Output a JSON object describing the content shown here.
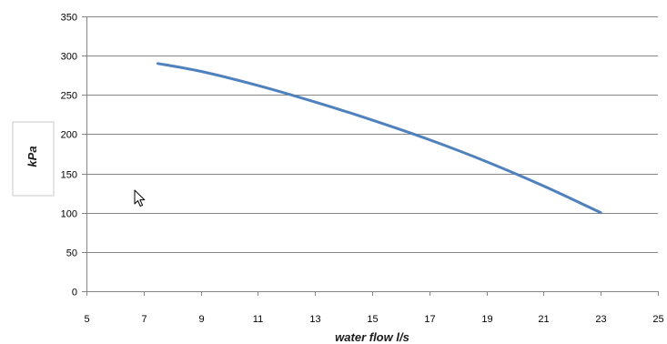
{
  "chart_data": {
    "type": "line",
    "title": "",
    "xlabel": "water flow l/s",
    "ylabel": "kPa",
    "xlim": [
      5,
      25
    ],
    "ylim": [
      0,
      350
    ],
    "x_ticks": [
      5,
      7,
      9,
      11,
      13,
      15,
      17,
      19,
      21,
      23,
      25
    ],
    "y_ticks": [
      0,
      50,
      100,
      150,
      200,
      250,
      300,
      350
    ],
    "grid": "horizontal",
    "series": [
      {
        "color": "#4f81bd",
        "x": [
          7.5,
          9,
          11,
          13,
          15,
          17,
          19,
          21,
          23
        ],
        "y": [
          290,
          280,
          262,
          241,
          218,
          193,
          165,
          134,
          100
        ]
      }
    ]
  },
  "cursor_icon": "mouse-pointer-icon"
}
